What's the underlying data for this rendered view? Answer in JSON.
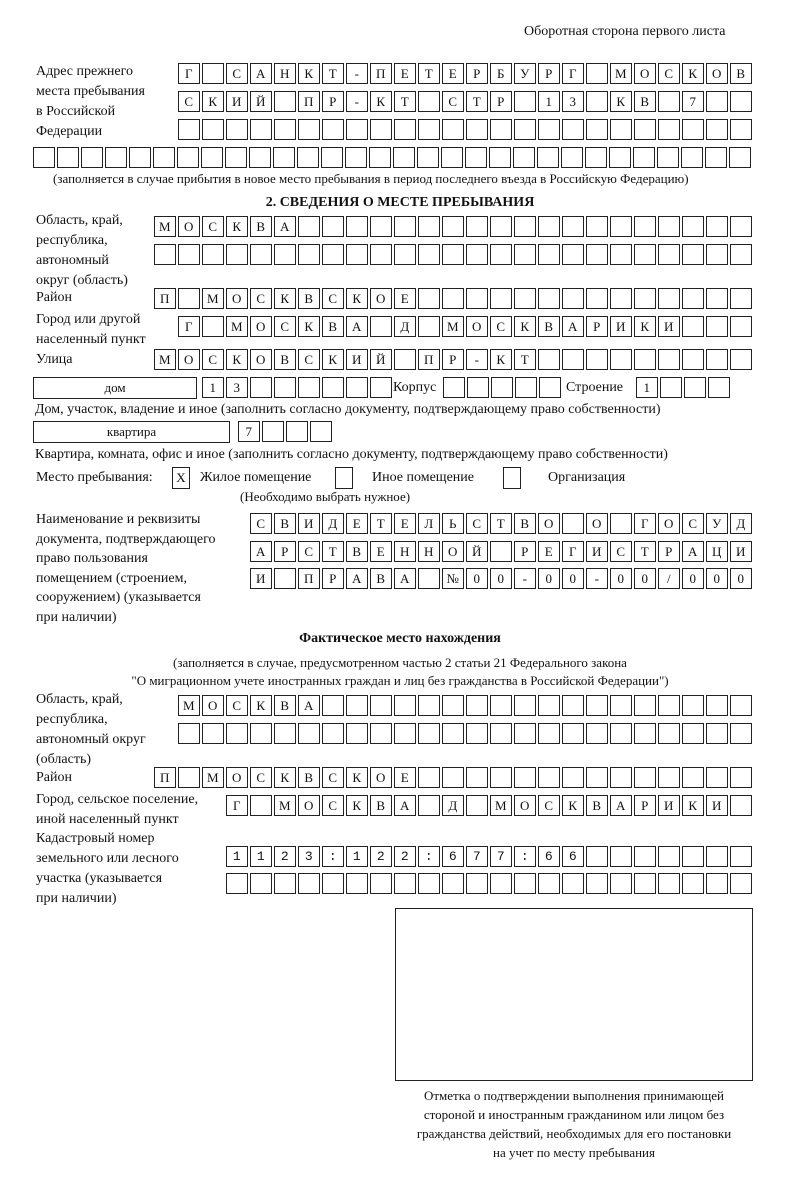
{
  "header_note": "Оборотная сторона первого листа",
  "previous_address": {
    "label": [
      "Адрес прежнего",
      "места пребывания",
      "в Российской",
      "Федерации"
    ],
    "rows": [
      "Г САНКТ-ПЕТЕРБУРГ МОСКОВ",
      "СКИЙ ПР-КТ СТР 13 КВ 7  ",
      "                        ",
      "                              "
    ],
    "note": "(заполняется в случае прибытия в новое место пребывания в период последнего въезда в Российскую Федерацию)"
  },
  "section2": {
    "title": "2. СВЕДЕНИЯ О МЕСТЕ ПРЕБЫВАНИЯ",
    "region_label": [
      "Область, край,",
      "республика,",
      "автономный",
      "округ (область)"
    ],
    "region_rows": [
      "МОСКВА                   ",
      "                         "
    ],
    "district_label": "Район",
    "district_row": "П МОСКВСКОЕ              ",
    "city_label": [
      "Город или другой",
      "населенный пункт"
    ],
    "city_row": "Г МОСКВА Д МОСКВАРИКИ   ",
    "street_label": "Улица",
    "street_row": "МОСКОВСКИЙ ПР-КТ         ",
    "house_type": "дом",
    "house_row": "13      ",
    "korpus_label": "Корпус",
    "korpus_row": "     ",
    "building_label": "Строение",
    "building_row": "1   ",
    "house_note": "Дом, участок, владение и иное (заполнить согласно документу, подтверждающему право собственности)",
    "flat_type": "квартира",
    "flat_row": "7   ",
    "flat_note": "Квартира, комната, офис и иное (заполнить согласно документу, подтверждающему право собственности)",
    "stay_place_label": "Место пребывания:",
    "options": [
      {
        "label": "Жилое помещение",
        "mark": "X"
      },
      {
        "label": "Иное помещение",
        "mark": ""
      },
      {
        "label": "Организация",
        "mark": ""
      }
    ],
    "choose_note": "(Необходимо выбрать нужное)",
    "document_label": [
      "Наименование и реквизиты",
      "документа, подтверждающего",
      "право пользования",
      "помещением (строением,",
      "сооружением) (указывается",
      "при наличии)"
    ],
    "document_rows": [
      "СВИДЕТЕЛЬСТВО О ГОСУД",
      "АРСТВЕННОЙ РЕГИСТРАЦИ",
      "И ПРАВА №00-00-00/000"
    ]
  },
  "actual_location": {
    "title": "Фактическое место нахождения",
    "note": [
      "(заполняется в случае, предусмотренном частью 2 статьи 21 Федерального закона",
      "\"О миграционном учете иностранных граждан и лиц без гражданства в Российской Федерации\")"
    ],
    "region_label": [
      "Область, край,",
      "республика,",
      "автономный округ",
      "(область)"
    ],
    "region_rows": [
      "МОСКВА                  ",
      "                        "
    ],
    "district_label": "Район",
    "district_row": "П МОСКВСКОЕ              ",
    "city_label": [
      "Город, сельское поселение,",
      "иной населенный пункт"
    ],
    "city_row": "Г МОСКВА Д МОСКВАРИКИ ",
    "cadastral_label": [
      "Кадастровый номер",
      "земельного или лесного",
      "участка (указывается",
      "при наличии)"
    ],
    "cadastral_rows": [
      "1123:122:677:66       ",
      "                      "
    ]
  },
  "confirmation_caption": [
    "Отметка о подтверждении выполнения принимающей",
    "стороной и иностранным гражданином или лицом без",
    "гражданства действий, необходимых для его постановки",
    "на учет по месту пребывания"
  ]
}
